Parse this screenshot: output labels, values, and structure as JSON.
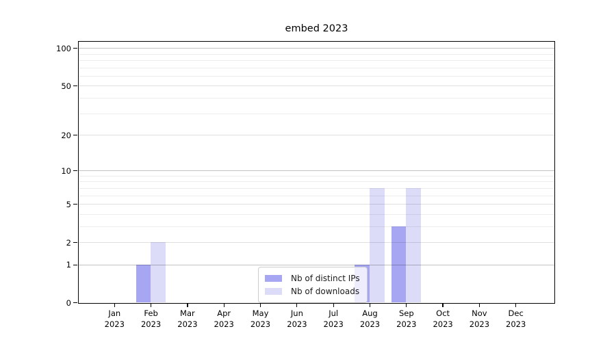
{
  "chart_data": {
    "type": "bar",
    "title": "embed 2023",
    "categories": [
      "Jan",
      "Feb",
      "Mar",
      "Apr",
      "May",
      "Jun",
      "Jul",
      "Aug",
      "Sep",
      "Oct",
      "Nov",
      "Dec"
    ],
    "year_label": "2023",
    "series": [
      {
        "name": "Nb of distinct IPs",
        "color": "#a6a6f2",
        "values": [
          0,
          1,
          0,
          0,
          0,
          0,
          0,
          1,
          3,
          0,
          0,
          0
        ]
      },
      {
        "name": "Nb of downloads",
        "color": "#dcdcf8",
        "values": [
          0,
          2,
          0,
          0,
          0,
          0,
          0,
          7,
          7,
          0,
          0,
          0
        ]
      }
    ],
    "yscale": "log1p",
    "ylim": [
      0,
      112
    ],
    "y_major_ticks": [
      0,
      1,
      2,
      5,
      10,
      20,
      50,
      100
    ],
    "y_minor_gridlines": [
      3,
      4,
      6,
      7,
      8,
      9,
      30,
      40,
      60,
      70,
      80,
      90
    ],
    "grid": "on",
    "legend_position": "lower-center",
    "axis_color": "#000000",
    "background_color": "#ffffff"
  }
}
